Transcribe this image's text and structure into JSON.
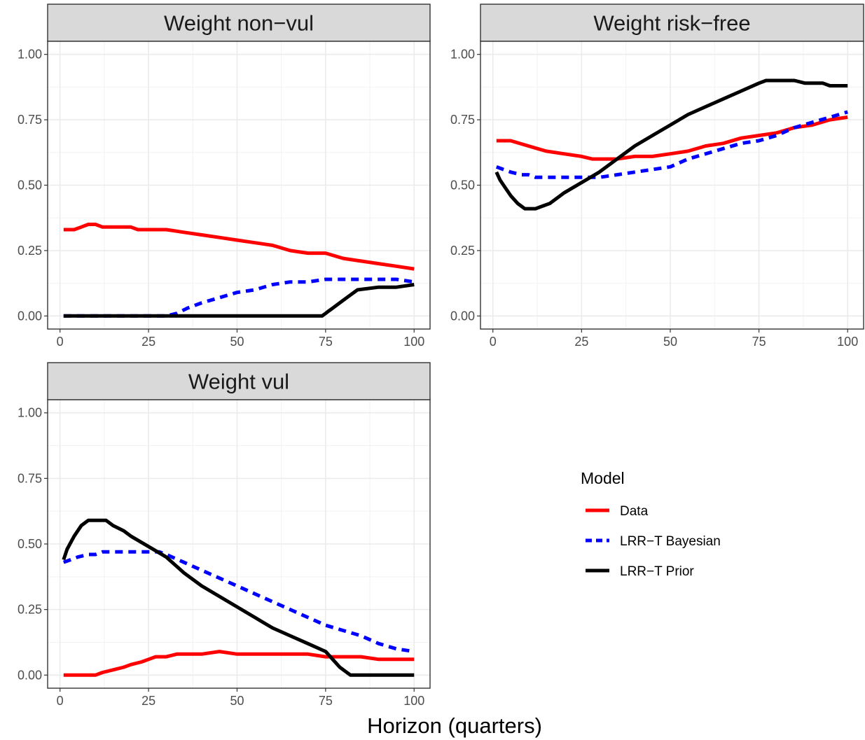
{
  "chart_data": {
    "type": "line",
    "xlabel": "Horizon (quarters)",
    "ylabel": "",
    "xlim": [
      0,
      100
    ],
    "ylim": [
      0,
      1
    ],
    "x_ticks": [
      "0",
      "25",
      "50",
      "75",
      "100"
    ],
    "y_ticks": [
      "0.00",
      "0.25",
      "0.50",
      "0.75",
      "1.00"
    ],
    "grid": true,
    "legend": {
      "title": "Model",
      "placement": "right",
      "entries": [
        {
          "label": "Data",
          "color": "#ff0000",
          "style": "solid"
        },
        {
          "label": "LRR−T Bayesian",
          "color": "#0000ff",
          "style": "dashed"
        },
        {
          "label": "LRR−T Prior",
          "color": "#000000",
          "style": "solid"
        }
      ]
    },
    "panels": [
      {
        "title": "Weight non−vul",
        "series": [
          {
            "name": "Data",
            "color": "#ff0000",
            "dash": false,
            "x": [
              1,
              4,
              6,
              8,
              10,
              12,
              20,
              22,
              30,
              35,
              40,
              45,
              50,
              55,
              60,
              65,
              70,
              75,
              80,
              85,
              90,
              95,
              100
            ],
            "y": [
              0.33,
              0.33,
              0.34,
              0.35,
              0.35,
              0.34,
              0.34,
              0.33,
              0.33,
              0.32,
              0.31,
              0.3,
              0.29,
              0.28,
              0.27,
              0.25,
              0.24,
              0.24,
              0.22,
              0.21,
              0.2,
              0.19,
              0.18
            ]
          },
          {
            "name": "LRR−T Bayesian",
            "color": "#0000ff",
            "dash": true,
            "x": [
              1,
              30,
              33,
              36,
              40,
              45,
              50,
              55,
              60,
              65,
              70,
              75,
              80,
              85,
              90,
              95,
              100
            ],
            "y": [
              0.0,
              0.0,
              0.01,
              0.03,
              0.05,
              0.07,
              0.09,
              0.1,
              0.12,
              0.13,
              0.13,
              0.14,
              0.14,
              0.14,
              0.14,
              0.14,
              0.13
            ]
          },
          {
            "name": "LRR−T Prior",
            "color": "#000000",
            "dash": false,
            "x": [
              1,
              74,
              75,
              76,
              77,
              78,
              80,
              82,
              84,
              90,
              95,
              100
            ],
            "y": [
              0.0,
              0.0,
              0.01,
              0.02,
              0.03,
              0.04,
              0.06,
              0.08,
              0.1,
              0.11,
              0.11,
              0.12
            ]
          }
        ]
      },
      {
        "title": "Weight risk−free",
        "series": [
          {
            "name": "Data",
            "color": "#ff0000",
            "dash": false,
            "x": [
              1,
              5,
              10,
              15,
              20,
              25,
              28,
              30,
              35,
              40,
              45,
              50,
              55,
              60,
              65,
              70,
              75,
              80,
              85,
              90,
              95,
              100
            ],
            "y": [
              0.67,
              0.67,
              0.65,
              0.63,
              0.62,
              0.61,
              0.6,
              0.6,
              0.6,
              0.61,
              0.61,
              0.62,
              0.63,
              0.65,
              0.66,
              0.68,
              0.69,
              0.7,
              0.72,
              0.73,
              0.75,
              0.76
            ]
          },
          {
            "name": "LRR−T Bayesian",
            "color": "#0000ff",
            "dash": true,
            "x": [
              1,
              3,
              5,
              8,
              10,
              12,
              15,
              20,
              25,
              30,
              35,
              40,
              45,
              50,
              55,
              60,
              65,
              70,
              75,
              80,
              85,
              90,
              95,
              100
            ],
            "y": [
              0.57,
              0.56,
              0.55,
              0.54,
              0.54,
              0.53,
              0.53,
              0.53,
              0.53,
              0.53,
              0.54,
              0.55,
              0.56,
              0.57,
              0.6,
              0.62,
              0.64,
              0.66,
              0.67,
              0.69,
              0.72,
              0.74,
              0.76,
              0.78
            ]
          },
          {
            "name": "LRR−T Prior",
            "color": "#000000",
            "dash": false,
            "x": [
              1,
              2,
              3,
              5,
              7,
              9,
              12,
              14,
              16,
              20,
              25,
              30,
              35,
              40,
              45,
              50,
              55,
              60,
              65,
              70,
              75,
              77,
              85,
              88,
              93,
              95,
              100
            ],
            "y": [
              0.55,
              0.52,
              0.5,
              0.46,
              0.43,
              0.41,
              0.41,
              0.42,
              0.43,
              0.47,
              0.51,
              0.55,
              0.6,
              0.65,
              0.69,
              0.73,
              0.77,
              0.8,
              0.83,
              0.86,
              0.89,
              0.9,
              0.9,
              0.89,
              0.89,
              0.88,
              0.88
            ]
          }
        ]
      },
      {
        "title": "Weight vul",
        "series": [
          {
            "name": "Data",
            "color": "#ff0000",
            "dash": false,
            "x": [
              1,
              10,
              12,
              15,
              18,
              20,
              23,
              25,
              27,
              30,
              33,
              35,
              40,
              45,
              50,
              55,
              60,
              65,
              70,
              75,
              80,
              85,
              90,
              95,
              100
            ],
            "y": [
              0.0,
              0.0,
              0.01,
              0.02,
              0.03,
              0.04,
              0.05,
              0.06,
              0.07,
              0.07,
              0.08,
              0.08,
              0.08,
              0.09,
              0.08,
              0.08,
              0.08,
              0.08,
              0.08,
              0.07,
              0.07,
              0.07,
              0.06,
              0.06,
              0.06
            ]
          },
          {
            "name": "LRR−T Bayesian",
            "color": "#0000ff",
            "dash": true,
            "x": [
              1,
              3,
              5,
              8,
              10,
              12,
              15,
              20,
              25,
              28,
              30,
              35,
              40,
              45,
              50,
              55,
              60,
              65,
              70,
              75,
              80,
              85,
              90,
              95,
              100
            ],
            "y": [
              0.43,
              0.44,
              0.45,
              0.46,
              0.46,
              0.47,
              0.47,
              0.47,
              0.47,
              0.47,
              0.46,
              0.43,
              0.4,
              0.37,
              0.34,
              0.31,
              0.28,
              0.25,
              0.22,
              0.19,
              0.17,
              0.15,
              0.12,
              0.1,
              0.09
            ]
          },
          {
            "name": "LRR−T Prior",
            "color": "#000000",
            "dash": false,
            "x": [
              1,
              2,
              4,
              6,
              8,
              10,
              13,
              15,
              18,
              20,
              25,
              30,
              35,
              40,
              45,
              50,
              55,
              60,
              65,
              70,
              75,
              77,
              79,
              81,
              82,
              85,
              100
            ],
            "y": [
              0.44,
              0.48,
              0.53,
              0.57,
              0.59,
              0.59,
              0.59,
              0.57,
              0.55,
              0.53,
              0.49,
              0.45,
              0.39,
              0.34,
              0.3,
              0.26,
              0.22,
              0.18,
              0.15,
              0.12,
              0.09,
              0.06,
              0.03,
              0.01,
              0.0,
              0.0,
              0.0
            ]
          }
        ]
      }
    ]
  }
}
